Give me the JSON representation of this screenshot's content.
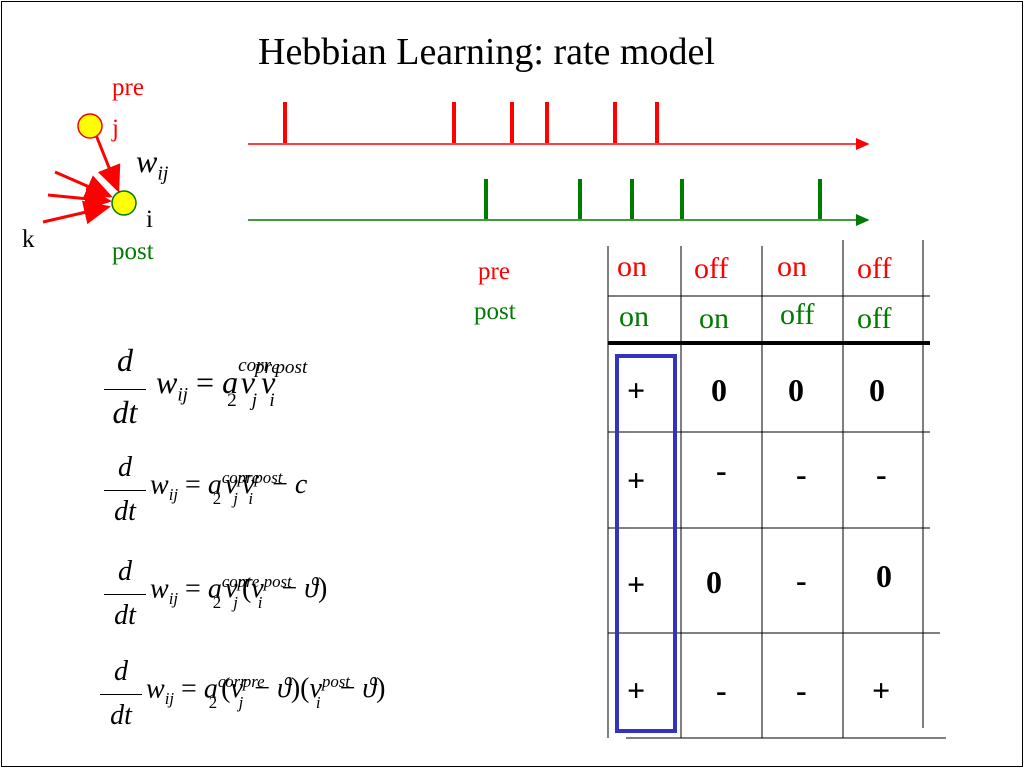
{
  "title": "Hebbian Learning: rate model",
  "neuron_labels": {
    "pre": "pre",
    "j": "j",
    "w": "w",
    "w_sub": "ij",
    "i": "i",
    "k": "k",
    "post": "post"
  },
  "spike_labels": {
    "pre": "pre",
    "post": "post"
  },
  "table": {
    "pre_header": [
      "on",
      "off",
      "on",
      "off"
    ],
    "post_header": [
      "on",
      "on",
      "off",
      "off"
    ],
    "rows": [
      [
        "+",
        "0",
        "0",
        "0"
      ],
      [
        "+",
        "-",
        "-",
        "-"
      ],
      [
        "+",
        "0",
        "-",
        "0"
      ],
      [
        "+",
        "-",
        "-",
        "+"
      ]
    ]
  },
  "colors": {
    "pre": "#ff0000",
    "post": "#007a00",
    "highlight_box": "#3333bb",
    "neuron_fill": "#ffff00"
  }
}
